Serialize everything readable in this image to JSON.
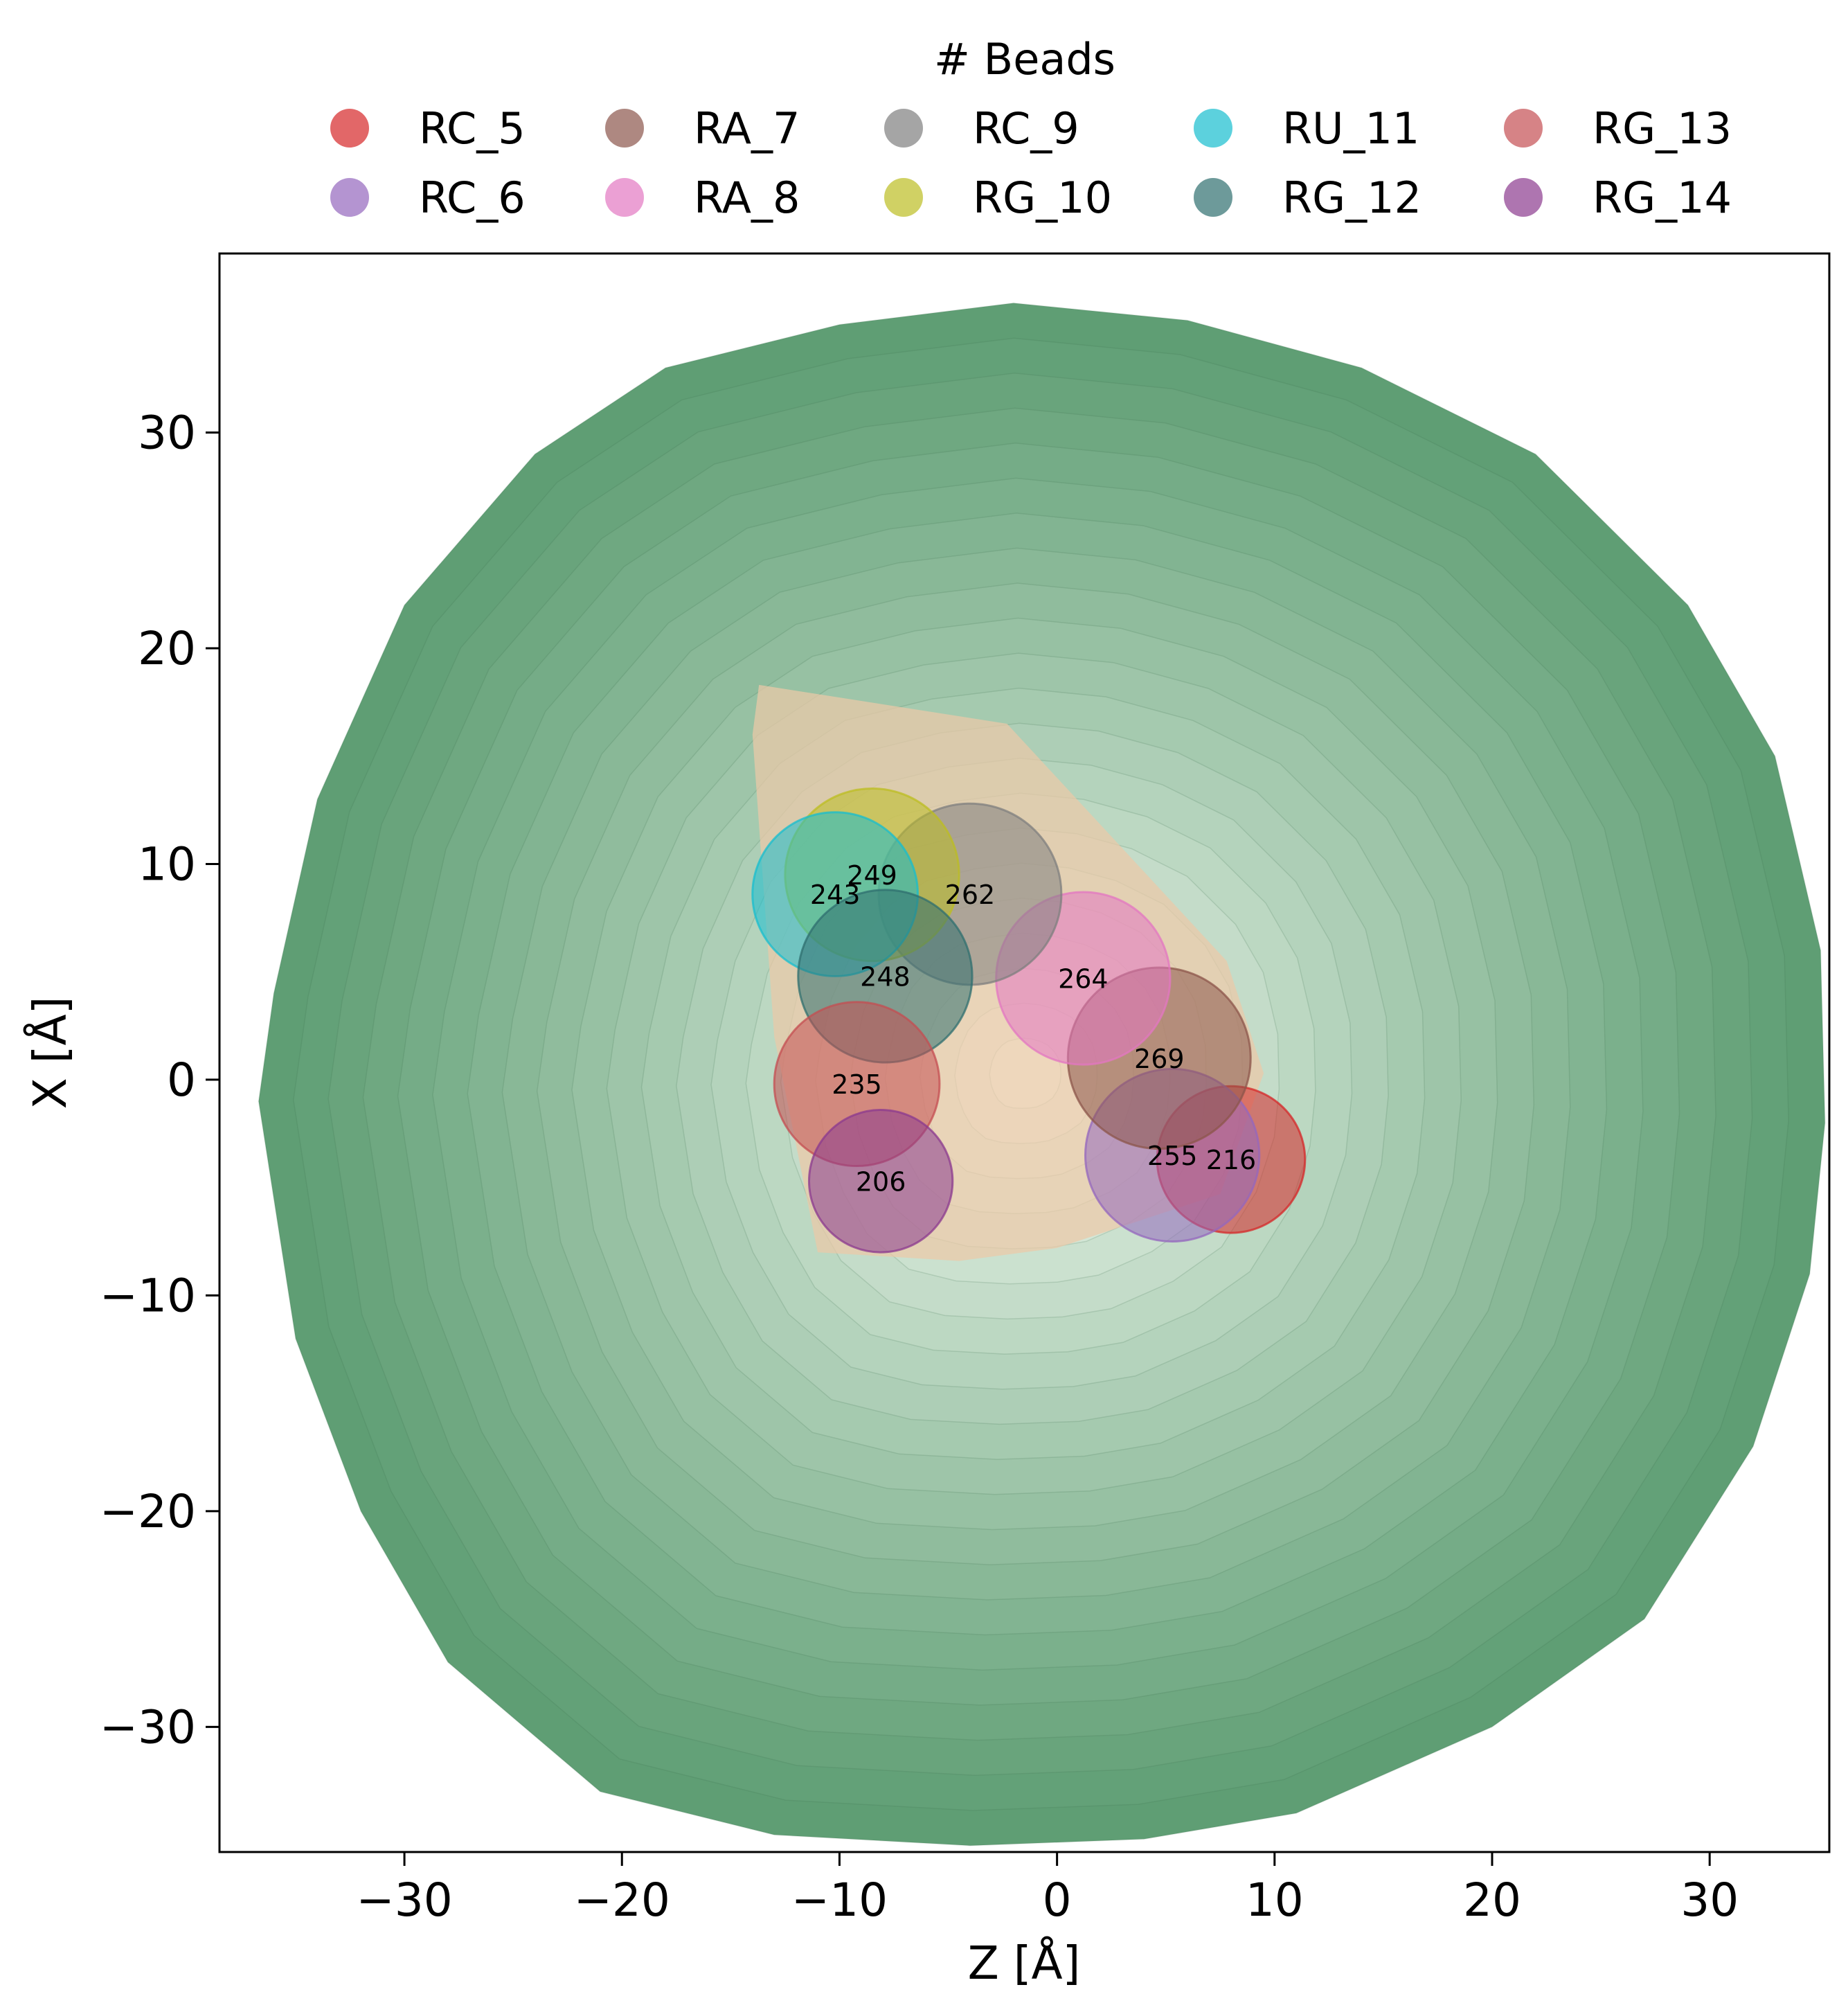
{
  "chart_data": {
    "type": "scatter",
    "xlabel": "Z [Å]",
    "ylabel": "X [Å]",
    "xlim": [
      -38.5,
      35.5
    ],
    "ylim": [
      -35.8,
      38.3
    ],
    "xticks": [
      -30,
      -20,
      -10,
      0,
      10,
      20,
      30
    ],
    "yticks": [
      -30,
      -20,
      -10,
      0,
      10,
      20,
      30
    ],
    "xtick_labels": [
      "−30",
      "−20",
      "−10",
      "0",
      "10",
      "20",
      "30"
    ],
    "ytick_labels": [
      "−30",
      "−20",
      "−10",
      "0",
      "10",
      "20",
      "30"
    ],
    "grid": false,
    "legend": {
      "title": "# Beads",
      "placement": "top-center, above plot",
      "columns": 5
    },
    "membrane_region": {
      "color_outer": "#5f9e74",
      "color_inner": "#f3faf1",
      "outline": [
        [
          -36.7,
          -1
        ],
        [
          -35,
          -12
        ],
        [
          -32,
          -20
        ],
        [
          -28,
          -27
        ],
        [
          -21,
          -33
        ],
        [
          -13,
          -35
        ],
        [
          -4,
          -35.5
        ],
        [
          4,
          -35.2
        ],
        [
          11,
          -34
        ],
        [
          20,
          -30
        ],
        [
          27,
          -25
        ],
        [
          32,
          -17
        ],
        [
          34.6,
          -9
        ],
        [
          35.3,
          -2
        ],
        [
          35.1,
          6
        ],
        [
          33,
          15
        ],
        [
          29,
          22
        ],
        [
          22,
          29
        ],
        [
          14,
          33
        ],
        [
          6,
          35.2
        ],
        [
          -2,
          36
        ],
        [
          -10,
          35
        ],
        [
          -18,
          33
        ],
        [
          -24,
          29
        ],
        [
          -30,
          22
        ],
        [
          -34,
          13
        ],
        [
          -36,
          4
        ]
      ],
      "levels": 22
    },
    "protein_region": {
      "color": "#ebc9a8",
      "outline": [
        [
          -13.7,
          18.3
        ],
        [
          -2.3,
          16.5
        ],
        [
          7.8,
          5.5
        ],
        [
          9.5,
          0.3
        ],
        [
          7.5,
          -5.3
        ],
        [
          0,
          -7.8
        ],
        [
          -4.5,
          -8.4
        ],
        [
          -11,
          -8
        ],
        [
          -13,
          2
        ],
        [
          -14,
          16
        ]
      ]
    },
    "series": [
      {
        "name": "RC_5",
        "color": "#d62728",
        "z": 8.0,
        "x": -3.7,
        "radius": 3.4,
        "label": "216"
      },
      {
        "name": "RC_6",
        "color": "#9467bd",
        "z": 5.3,
        "x": -3.5,
        "radius": 4.0,
        "label": "255"
      },
      {
        "name": "RA_7",
        "color": "#8c564b",
        "z": 4.7,
        "x": 1.0,
        "radius": 4.2,
        "label": "269"
      },
      {
        "name": "RA_8",
        "color": "#e377c2",
        "z": 1.2,
        "x": 4.7,
        "radius": 4.0,
        "label": "264"
      },
      {
        "name": "RC_9",
        "color": "#7f7f7f",
        "z": -4.0,
        "x": 8.6,
        "radius": 4.2,
        "label": "262"
      },
      {
        "name": "RG_10",
        "color": "#bcbd22",
        "z": -8.5,
        "x": 9.5,
        "radius": 4.0,
        "label": "249"
      },
      {
        "name": "RU_11",
        "color": "#17becf",
        "z": -10.2,
        "x": 8.6,
        "radius": 3.8,
        "label": "243"
      },
      {
        "name": "RG_12",
        "color": "#2f6f6f",
        "z": -7.9,
        "x": 4.8,
        "radius": 4.0,
        "label": "248"
      },
      {
        "name": "RG_13",
        "color": "#c44e52",
        "z": -9.2,
        "x": -0.2,
        "radius": 3.8,
        "label": "235"
      },
      {
        "name": "RG_14",
        "color": "#8b3a8f",
        "z": -8.1,
        "x": -4.7,
        "radius": 3.3,
        "label": "206"
      }
    ]
  }
}
